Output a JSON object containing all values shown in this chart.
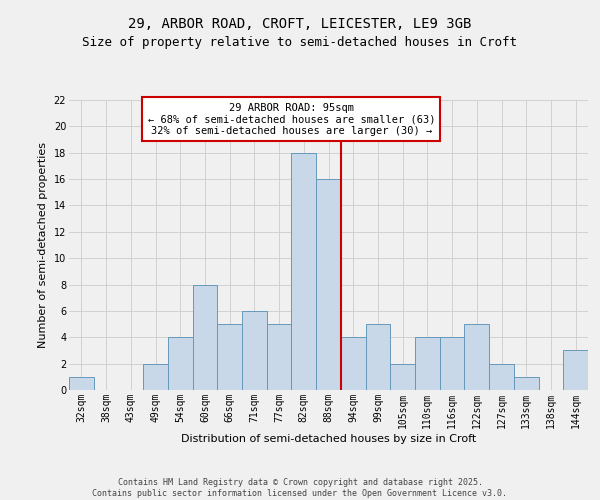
{
  "title_line1": "29, ARBOR ROAD, CROFT, LEICESTER, LE9 3GB",
  "title_line2": "Size of property relative to semi-detached houses in Croft",
  "xlabel": "Distribution of semi-detached houses by size in Croft",
  "ylabel": "Number of semi-detached properties",
  "categories": [
    "32sqm",
    "38sqm",
    "43sqm",
    "49sqm",
    "54sqm",
    "60sqm",
    "66sqm",
    "71sqm",
    "77sqm",
    "82sqm",
    "88sqm",
    "94sqm",
    "99sqm",
    "105sqm",
    "110sqm",
    "116sqm",
    "122sqm",
    "127sqm",
    "133sqm",
    "138sqm",
    "144sqm"
  ],
  "values": [
    1,
    0,
    0,
    2,
    4,
    8,
    5,
    6,
    5,
    18,
    16,
    4,
    5,
    2,
    4,
    4,
    5,
    2,
    1,
    0,
    3
  ],
  "bar_color": "#c8d8e8",
  "bar_edge_color": "#6699bb",
  "vline_x_index": 11,
  "vline_color": "#cc0000",
  "annotation_text": "29 ARBOR ROAD: 95sqm\n← 68% of semi-detached houses are smaller (63)\n32% of semi-detached houses are larger (30) →",
  "annotation_box_color": "#ffffff",
  "annotation_box_edge_color": "#cc0000",
  "ylim": [
    0,
    22
  ],
  "yticks": [
    0,
    2,
    4,
    6,
    8,
    10,
    12,
    14,
    16,
    18,
    20,
    22
  ],
  "grid_color": "#cccccc",
  "background_color": "#f0f0f0",
  "footer_text": "Contains HM Land Registry data © Crown copyright and database right 2025.\nContains public sector information licensed under the Open Government Licence v3.0.",
  "title_fontsize": 10,
  "subtitle_fontsize": 9,
  "axis_label_fontsize": 8,
  "tick_fontsize": 7,
  "footer_fontsize": 6,
  "annotation_fontsize": 7.5
}
